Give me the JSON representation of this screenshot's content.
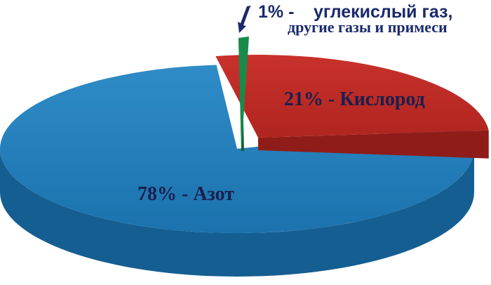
{
  "chart_data": {
    "type": "pie",
    "categories": [
      "Азот",
      "Кислород",
      "углекислый газ, другие газы и примеси"
    ],
    "values": [
      78,
      21,
      1
    ],
    "labels": {
      "nitrogen": "78% - Азот",
      "oxygen": "21% - Кислород",
      "other_pct": "1% -",
      "other_line1": "углекислый газ,",
      "other_line2": "другие газы и примеси"
    },
    "legend": "none",
    "colors": {
      "nitrogen": "#1e78b4",
      "nitrogen_side": "#155e91",
      "oxygen": "#bf2a25",
      "oxygen_side": "#8f1c18",
      "other": "#1a8a4a",
      "other_side": "#0f6133",
      "text": "#1a1f4d"
    }
  }
}
